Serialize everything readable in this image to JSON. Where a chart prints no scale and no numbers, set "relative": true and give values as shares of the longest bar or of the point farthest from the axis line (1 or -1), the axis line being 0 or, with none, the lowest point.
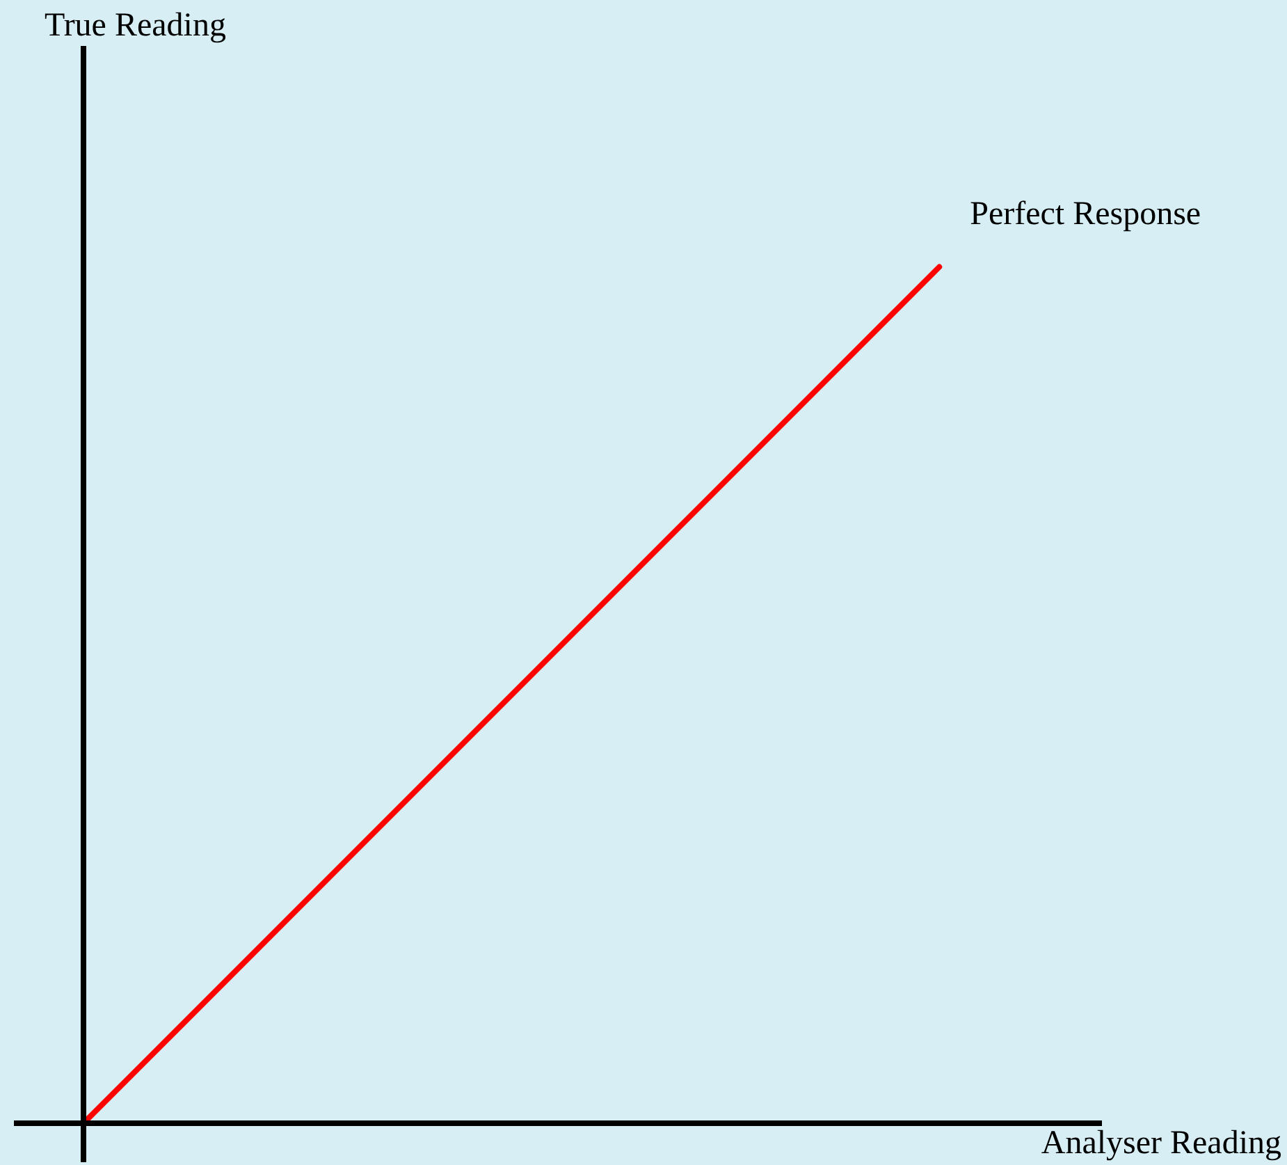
{
  "chart_data": {
    "type": "line",
    "relative": true,
    "xlabel": "Analyser Reading",
    "annotations": [
      "True Reading"
    ],
    "categories": [
      null,
      null
    ],
    "series": [
      {
        "name": "Perfect Response",
        "color": "#ff0000",
        "values": [
          0,
          1
        ]
      }
    ],
    "legend": false,
    "marker": "none"
  }
}
